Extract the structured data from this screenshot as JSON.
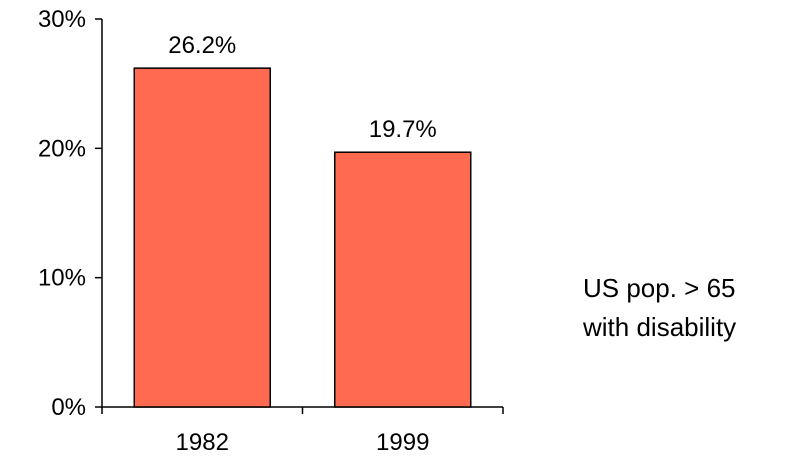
{
  "chart_data": {
    "type": "bar",
    "categories": [
      "1982",
      "1999"
    ],
    "values": [
      26.2,
      19.7
    ],
    "data_labels": [
      "26.2%",
      "19.7%"
    ],
    "ylim": [
      0,
      30
    ],
    "yticks": [
      0,
      10,
      20,
      30
    ],
    "ytick_labels": [
      "0%",
      "10%",
      "20%",
      "30%"
    ],
    "grid": false,
    "legend": "none",
    "bar_color": "#FF6A50",
    "annotation": [
      "US pop. > 65",
      "with disability"
    ]
  }
}
